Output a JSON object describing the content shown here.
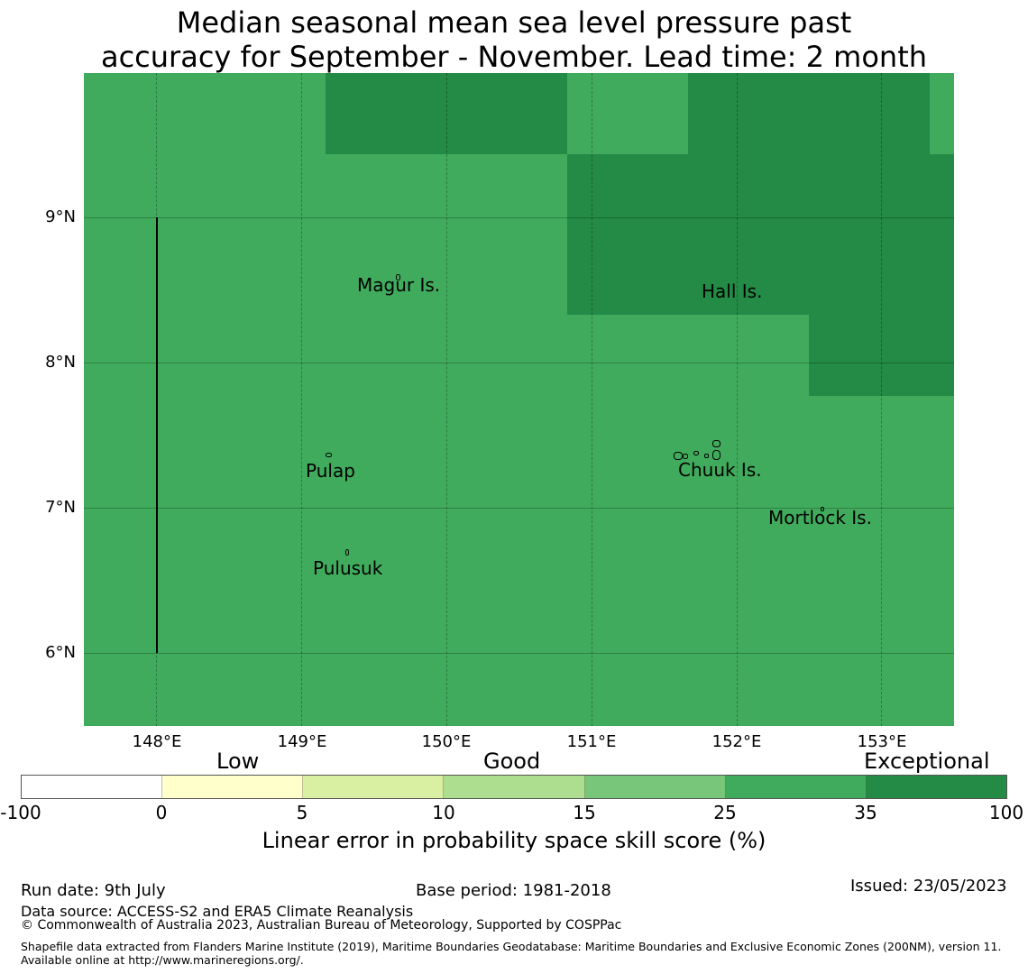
{
  "title": {
    "line1": "Median seasonal mean sea level pressure past",
    "line2": "accuracy for September - November. Lead time: 2 month"
  },
  "map": {
    "base_color": "#41ab5d",
    "high_skill_color": "#238b45",
    "lat_labels": [
      "9°N",
      "8°N",
      "7°N",
      "6°N"
    ],
    "lon_labels": [
      "148°E",
      "149°E",
      "150°E",
      "151°E",
      "152°E",
      "153°E"
    ],
    "places": {
      "magur": "Magur Is.",
      "hall": "Hall Is.",
      "pulap": "Pulap",
      "chuuk": "Chuuk Is.",
      "mortlock": "Mortlock Is.",
      "pulusuk": "Pulusuk"
    }
  },
  "colorbar": {
    "categories": {
      "low": "Low",
      "good": "Good",
      "exceptional": "Exceptional"
    },
    "colors": [
      "#ffffff",
      "#ffffcc",
      "#d9f0a3",
      "#addd8e",
      "#78c679",
      "#41ab5d",
      "#238b45"
    ],
    "ticks": [
      "-100",
      "0",
      "5",
      "10",
      "15",
      "25",
      "35",
      "100"
    ],
    "label": "Linear error in probability space skill score (%)"
  },
  "footer": {
    "run_date": "Run date: 9th July",
    "base_period": "Base period: 1981-2018",
    "issued": "Issued: 23/05/2023",
    "data_source": "Data source: ACCESS-S2 and ERA5 Climate Reanalysis",
    "copyright": "© Commonwealth of Australia 2023, Australian Bureau of Meteorology, Supported by COSPPac",
    "shapefile": "Shapefile data extracted from Flanders Marine Institute (2019), Maritime Boundaries Geodatabase: Maritime Boundaries and Exclusive Economic Zones (200NM), version 11. Available online at http://www.marineregions.org/."
  }
}
